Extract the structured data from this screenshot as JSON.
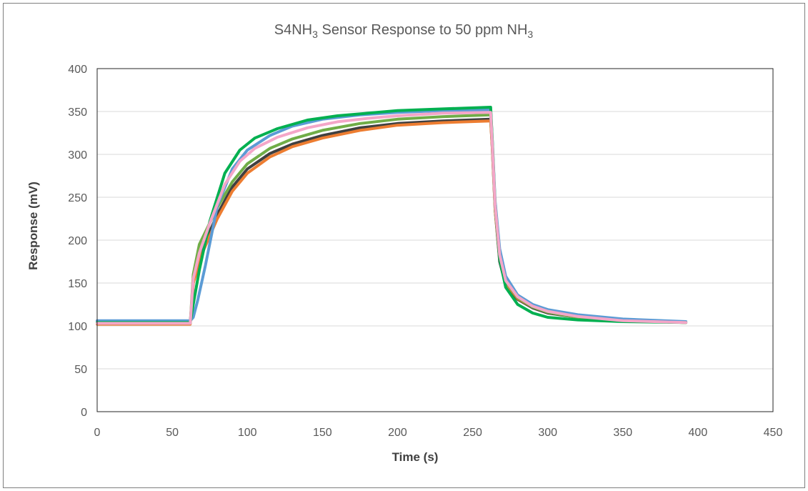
{
  "chart_data": {
    "type": "line",
    "title": {
      "prefix": "S4NH",
      "sub1": "3",
      "middle": " Sensor Response to 50 ppm NH",
      "sub2": "3"
    },
    "xlabel": "Time (s)",
    "ylabel": "Response  (mV)",
    "xlim": [
      0,
      450
    ],
    "ylim": [
      0,
      400
    ],
    "x_ticks": [
      "0",
      "50",
      "100",
      "150",
      "200",
      "250",
      "300",
      "350",
      "400",
      "450"
    ],
    "y_ticks": [
      "0",
      "50",
      "100",
      "150",
      "200",
      "250",
      "300",
      "350",
      "400"
    ],
    "grid": "horizontal",
    "legend": "none",
    "series": [
      {
        "color": "#404040",
        "points": [
          [
            0,
            103
          ],
          [
            62,
            103
          ],
          [
            64,
            150
          ],
          [
            70,
            190
          ],
          [
            80,
            230
          ],
          [
            90,
            262
          ],
          [
            100,
            283
          ],
          [
            115,
            301
          ],
          [
            130,
            312
          ],
          [
            150,
            322
          ],
          [
            175,
            331
          ],
          [
            200,
            336
          ],
          [
            230,
            339
          ],
          [
            262,
            341
          ],
          [
            263,
            310
          ],
          [
            265,
            235
          ],
          [
            268,
            175
          ],
          [
            272,
            148
          ],
          [
            280,
            131
          ],
          [
            290,
            121
          ],
          [
            300,
            115
          ],
          [
            320,
            110
          ],
          [
            350,
            106
          ],
          [
            392,
            104
          ]
        ]
      },
      {
        "color": "#ed7d31",
        "points": [
          [
            0,
            102
          ],
          [
            62,
            102
          ],
          [
            64,
            150
          ],
          [
            70,
            185
          ],
          [
            80,
            225
          ],
          [
            90,
            257
          ],
          [
            100,
            278
          ],
          [
            115,
            297
          ],
          [
            130,
            309
          ],
          [
            150,
            319
          ],
          [
            175,
            328
          ],
          [
            200,
            334
          ],
          [
            230,
            337
          ],
          [
            262,
            339
          ],
          [
            263,
            310
          ],
          [
            265,
            235
          ],
          [
            268,
            178
          ],
          [
            272,
            150
          ],
          [
            280,
            132
          ],
          [
            290,
            122
          ],
          [
            300,
            116
          ],
          [
            320,
            110
          ],
          [
            350,
            106
          ],
          [
            392,
            104
          ]
        ]
      },
      {
        "color": "#70ad47",
        "points": [
          [
            0,
            103
          ],
          [
            62,
            103
          ],
          [
            64,
            160
          ],
          [
            68,
            195
          ],
          [
            80,
            238
          ],
          [
            90,
            268
          ],
          [
            100,
            289
          ],
          [
            115,
            307
          ],
          [
            130,
            318
          ],
          [
            150,
            328
          ],
          [
            175,
            336
          ],
          [
            200,
            341
          ],
          [
            230,
            344
          ],
          [
            262,
            346
          ],
          [
            263,
            315
          ],
          [
            265,
            240
          ],
          [
            268,
            182
          ],
          [
            272,
            152
          ],
          [
            280,
            133
          ],
          [
            290,
            122
          ],
          [
            300,
            116
          ],
          [
            320,
            110
          ],
          [
            350,
            106
          ],
          [
            392,
            104
          ]
        ]
      },
      {
        "color": "#5b9bd5",
        "points": [
          [
            0,
            106
          ],
          [
            62,
            106
          ],
          [
            64,
            110
          ],
          [
            67,
            130
          ],
          [
            72,
            170
          ],
          [
            80,
            240
          ],
          [
            90,
            283
          ],
          [
            100,
            305
          ],
          [
            115,
            322
          ],
          [
            130,
            333
          ],
          [
            150,
            341
          ],
          [
            175,
            346
          ],
          [
            200,
            349
          ],
          [
            230,
            351
          ],
          [
            262,
            352
          ],
          [
            263,
            320
          ],
          [
            265,
            245
          ],
          [
            268,
            190
          ],
          [
            272,
            158
          ],
          [
            280,
            136
          ],
          [
            290,
            125
          ],
          [
            300,
            119
          ],
          [
            320,
            113
          ],
          [
            350,
            108
          ],
          [
            392,
            105
          ]
        ]
      },
      {
        "color": "#00b050",
        "points": [
          [
            0,
            104
          ],
          [
            62,
            104
          ],
          [
            64,
            125
          ],
          [
            68,
            165
          ],
          [
            75,
            222
          ],
          [
            85,
            278
          ],
          [
            95,
            305
          ],
          [
            105,
            319
          ],
          [
            120,
            330
          ],
          [
            140,
            340
          ],
          [
            160,
            345
          ],
          [
            180,
            348
          ],
          [
            200,
            351
          ],
          [
            230,
            353
          ],
          [
            262,
            355
          ],
          [
            263,
            320
          ],
          [
            265,
            240
          ],
          [
            268,
            178
          ],
          [
            272,
            145
          ],
          [
            280,
            125
          ],
          [
            290,
            115
          ],
          [
            300,
            110
          ],
          [
            320,
            107
          ],
          [
            350,
            105
          ],
          [
            392,
            104
          ]
        ]
      },
      {
        "color": "#f4a6c8",
        "points": [
          [
            0,
            103
          ],
          [
            62,
            103
          ],
          [
            64,
            155
          ],
          [
            68,
            185
          ],
          [
            75,
            220
          ],
          [
            85,
            265
          ],
          [
            95,
            292
          ],
          [
            105,
            307
          ],
          [
            120,
            320
          ],
          [
            140,
            331
          ],
          [
            160,
            338
          ],
          [
            180,
            342
          ],
          [
            200,
            345
          ],
          [
            230,
            348
          ],
          [
            262,
            349
          ],
          [
            263,
            315
          ],
          [
            265,
            240
          ],
          [
            268,
            183
          ],
          [
            272,
            153
          ],
          [
            280,
            134
          ],
          [
            290,
            123
          ],
          [
            300,
            117
          ],
          [
            320,
            111
          ],
          [
            350,
            106
          ],
          [
            392,
            104
          ]
        ]
      }
    ]
  }
}
